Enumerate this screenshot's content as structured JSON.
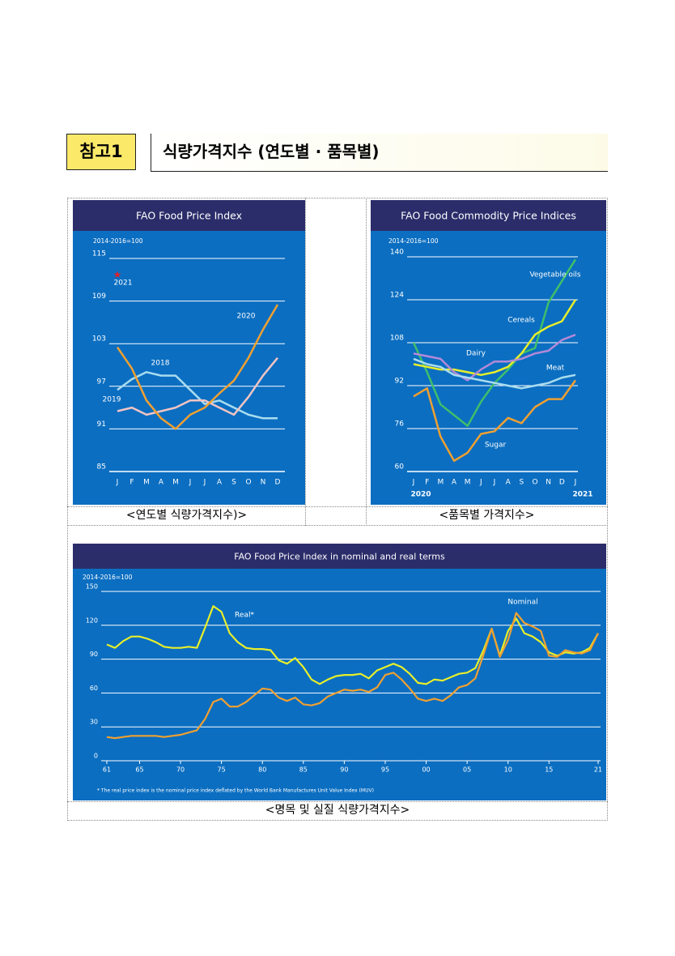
{
  "header": {
    "badge": "참고1",
    "title": "식량가격지수 (연도별 · 품목별)"
  },
  "captions": [
    "<연도별 식량가격지수)>",
    "<품목별 가격지수>",
    "<명목 및 실질 식량가격지수>"
  ],
  "chart_data": [
    {
      "type": "line",
      "title": "FAO Food Price Index",
      "subtitle": "2014-2016=100",
      "categories": [
        "J",
        "F",
        "M",
        "A",
        "M",
        "J",
        "J",
        "A",
        "S",
        "O",
        "N",
        "D"
      ],
      "ylim": [
        85,
        115
      ],
      "yticks": [
        85,
        91,
        97,
        103,
        109,
        115
      ],
      "grid": true,
      "series": [
        {
          "name": "2018",
          "color": "#a9dcef",
          "values": [
            96.5,
            98,
            99,
            98.5,
            98.5,
            96.5,
            94.5,
            95,
            94,
            93,
            92.5,
            92.5
          ]
        },
        {
          "name": "2019",
          "color": "#f2c4c4",
          "values": [
            93.5,
            94,
            93,
            93.5,
            94,
            95,
            95,
            94,
            93,
            95.5,
            98.5,
            101
          ]
        },
        {
          "name": "2020",
          "color": "#f0a030",
          "values": [
            102.5,
            99.5,
            95,
            92.5,
            91,
            93,
            94,
            96,
            97.8,
            101,
            105,
            108.5
          ]
        },
        {
          "name": "2021",
          "color": "#e0202a",
          "values": [
            113,
            null,
            null,
            null,
            null,
            null,
            null,
            null,
            null,
            null,
            null,
            null
          ]
        }
      ]
    },
    {
      "type": "line",
      "title": "FAO Food Commodity Price Indices",
      "subtitle": "2014-2016=100",
      "categories": [
        "J",
        "F",
        "M",
        "A",
        "M",
        "J",
        "J",
        "A",
        "S",
        "O",
        "N",
        "D",
        "J"
      ],
      "x_group_labels": [
        "2020",
        "2021"
      ],
      "ylim": [
        60,
        140
      ],
      "yticks": [
        60,
        76,
        92,
        108,
        124,
        140
      ],
      "grid": true,
      "series": [
        {
          "name": "Vegetable oils",
          "color": "#3fbf6a",
          "values": [
            108,
            97,
            85,
            81,
            77,
            86,
            93,
            98,
            104,
            106,
            123,
            131,
            139
          ]
        },
        {
          "name": "Cereals",
          "color": "#e8ef2a",
          "values": [
            100,
            99,
            98,
            98,
            97,
            96,
            97,
            99,
            104,
            111,
            114,
            116,
            124
          ]
        },
        {
          "name": "Dairy",
          "color": "#b48ad8",
          "values": [
            104,
            103,
            102,
            97,
            94,
            98,
            101,
            101,
            102,
            104,
            105,
            109,
            111
          ]
        },
        {
          "name": "Meat",
          "color": "#a9dcef",
          "values": [
            102,
            100,
            99,
            96,
            95,
            94,
            93,
            92,
            91,
            92,
            93,
            95,
            96
          ]
        },
        {
          "name": "Sugar",
          "color": "#f0a030",
          "values": [
            88,
            91,
            73,
            64,
            67,
            74,
            75,
            80,
            78,
            84,
            87,
            87,
            94
          ]
        }
      ]
    },
    {
      "type": "line",
      "title": "FAO Food Price Index in nominal and real terms",
      "subtitle": "2014-2016=100",
      "footnote": "* The real price index is the nominal price index deflated by the World Bank Manufactures Unit Value Index (MUV)",
      "x": [
        1961,
        1962,
        1963,
        1964,
        1965,
        1966,
        1967,
        1968,
        1969,
        1970,
        1971,
        1972,
        1973,
        1974,
        1975,
        1976,
        1977,
        1978,
        1979,
        1980,
        1981,
        1982,
        1983,
        1984,
        1985,
        1986,
        1987,
        1988,
        1989,
        1990,
        1991,
        1992,
        1993,
        1994,
        1995,
        1996,
        1997,
        1998,
        1999,
        2000,
        2001,
        2002,
        2003,
        2004,
        2005,
        2006,
        2007,
        2008,
        2009,
        2010,
        2011,
        2012,
        2013,
        2014,
        2015,
        2016,
        2017,
        2018,
        2019,
        2020,
        2021
      ],
      "xlim": [
        1961,
        2021
      ],
      "xticks": [
        {
          "value": 1961,
          "label": "61"
        },
        {
          "value": 1965,
          "label": "65"
        },
        {
          "value": 1970,
          "label": "70"
        },
        {
          "value": 1975,
          "label": "75"
        },
        {
          "value": 1980,
          "label": "80"
        },
        {
          "value": 1985,
          "label": "85"
        },
        {
          "value": 1990,
          "label": "90"
        },
        {
          "value": 1995,
          "label": "95"
        },
        {
          "value": 2000,
          "label": "00"
        },
        {
          "value": 2005,
          "label": "05"
        },
        {
          "value": 2010,
          "label": "10"
        },
        {
          "value": 2015,
          "label": "15"
        },
        {
          "value": 2021,
          "label": "21"
        }
      ],
      "ylim": [
        0,
        150
      ],
      "yticks": [
        0,
        30,
        60,
        90,
        120,
        150
      ],
      "grid": true,
      "series": [
        {
          "name": "Real*",
          "color": "#e8ef2a",
          "values": [
            103,
            100,
            106,
            110,
            110,
            108,
            105,
            101,
            100,
            100,
            101,
            100,
            118,
            137,
            132,
            113,
            105,
            100,
            99,
            99,
            98,
            89,
            86,
            91,
            83,
            72,
            68,
            72,
            75,
            76,
            76,
            77,
            73,
            80,
            83,
            86,
            83,
            77,
            69,
            68,
            72,
            71,
            74,
            77,
            78,
            82,
            98,
            117,
            93,
            115,
            126,
            113,
            110,
            105,
            96,
            93,
            96,
            95,
            96,
            100,
            113
          ]
        },
        {
          "name": "Nominal",
          "color": "#f0a030",
          "values": [
            21,
            20,
            21,
            22,
            22,
            22,
            22,
            21,
            22,
            23,
            25,
            27,
            37,
            52,
            55,
            48,
            48,
            52,
            58,
            64,
            63,
            56,
            53,
            56,
            50,
            49,
            51,
            57,
            60,
            63,
            62,
            63,
            61,
            65,
            76,
            78,
            72,
            64,
            55,
            53,
            55,
            53,
            58,
            65,
            67,
            73,
            94,
            117,
            92,
            107,
            131,
            122,
            119,
            115,
            93,
            92,
            98,
            96,
            95,
            98,
            113
          ]
        }
      ]
    }
  ]
}
